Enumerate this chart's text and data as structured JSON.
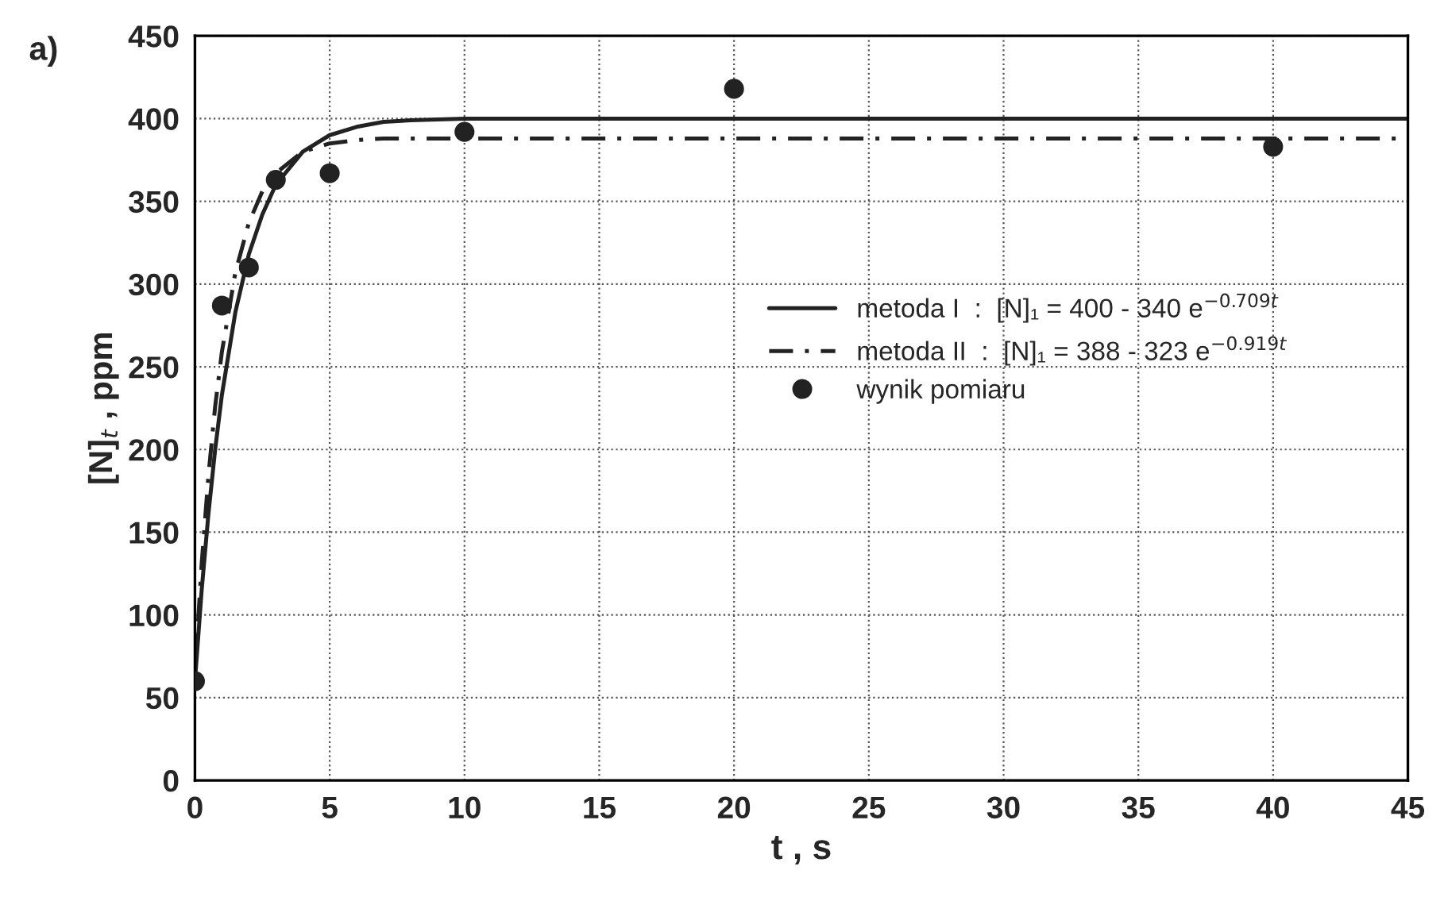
{
  "chart_data": {
    "type": "line",
    "xlabel": "t , s",
    "ylabel": "[N]$_{t}$ , ppm",
    "annotations": [
      "a)"
    ],
    "xlim": [
      0,
      45
    ],
    "xticks": [
      0,
      5,
      10,
      15,
      20,
      25,
      30,
      35,
      40,
      45
    ],
    "ylim": [
      0,
      450
    ],
    "yticks": [
      0,
      50,
      100,
      150,
      200,
      250,
      300,
      350,
      400,
      450
    ],
    "grid": true,
    "legend": "right",
    "series": [
      {
        "name": "metoda I  :  [N]₁ = 400 - 340 e$^{−0.709t}$",
        "line_style": "solid",
        "color": "#222222",
        "x": [
          0,
          0.25,
          0.5,
          0.75,
          1,
          1.5,
          2,
          2.5,
          3,
          4,
          5,
          6,
          7,
          8,
          10,
          45
        ],
        "values": [
          60,
          115,
          161,
          200,
          233,
          283,
          318,
          342,
          360,
          380,
          390,
          395,
          398,
          399,
          400,
          400
        ]
      },
      {
        "name": "metoda II  :  [N]₁ = 388 - 323 e$^{−0.919t}$",
        "line_style": "dashed",
        "color": "#222222",
        "x": [
          0,
          0.25,
          0.5,
          0.75,
          1,
          1.5,
          2,
          2.5,
          3,
          4,
          5,
          6,
          7,
          10,
          45
        ],
        "values": [
          65,
          131,
          184,
          226,
          259,
          307,
          337,
          356,
          367,
          380,
          385,
          387,
          388,
          388,
          388
        ]
      },
      {
        "name": "wynik pomiaru",
        "type": "scatter",
        "marker": "circle",
        "color": "#222222",
        "x": [
          0,
          1,
          2,
          3,
          5,
          10,
          20,
          40
        ],
        "values": [
          60,
          287,
          310,
          363,
          367,
          392,
          418,
          383
        ]
      }
    ]
  }
}
